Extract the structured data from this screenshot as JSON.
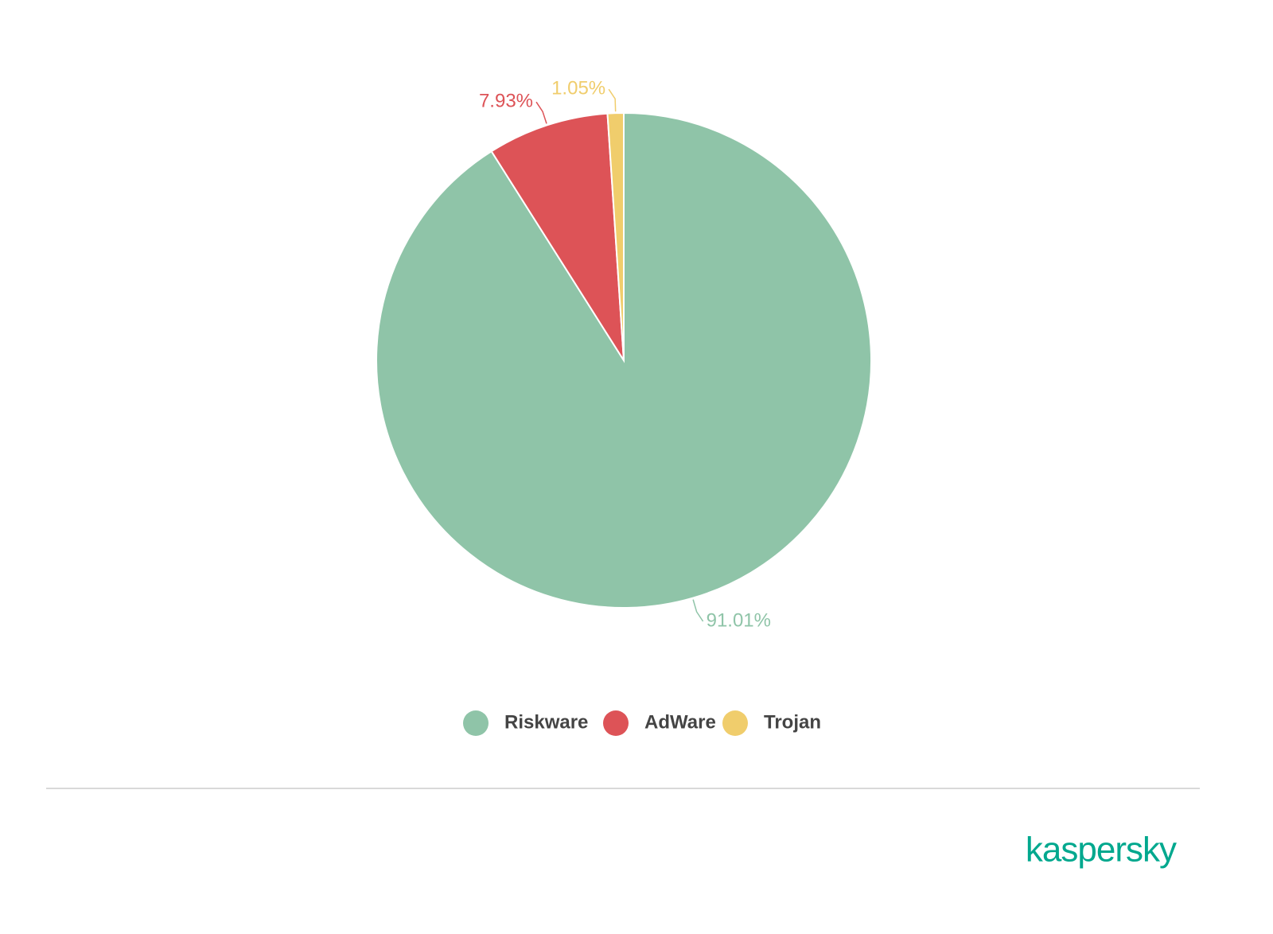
{
  "chart_data": {
    "type": "pie",
    "categories": [
      "Riskware",
      "AdWare",
      "Trojan"
    ],
    "values": [
      91.01,
      7.93,
      1.05
    ],
    "value_labels": [
      "91.01%",
      "7.93%",
      "1.05%"
    ],
    "colors": [
      "#8fc4a8",
      "#dd5357",
      "#f0cd6c"
    ],
    "legend": "bottom"
  },
  "logo": "kaspersky"
}
